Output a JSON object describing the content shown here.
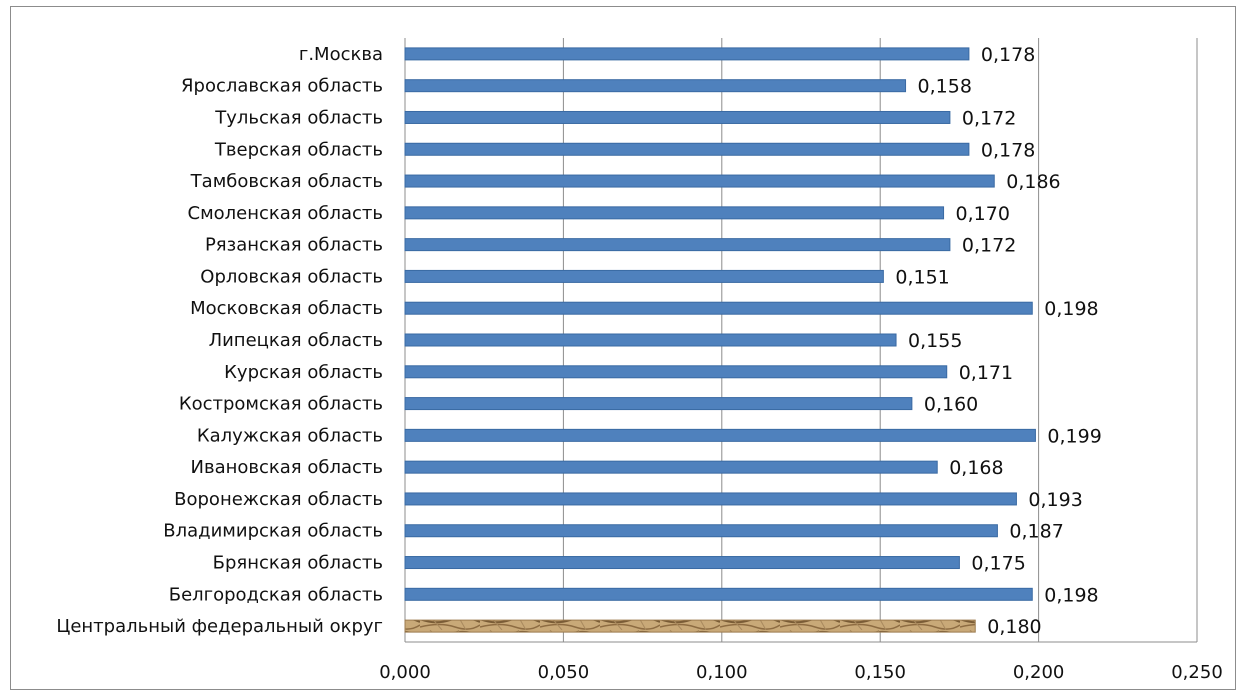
{
  "chart_data": {
    "type": "bar",
    "orientation": "horizontal",
    "categories": [
      "г.Москва",
      "Ярославская область",
      "Тульская область",
      "Тверская область",
      "Тамбовская область",
      "Смоленская область",
      "Рязанская область",
      "Орловская область",
      "Московская область",
      "Липецкая область",
      "Курская область",
      "Костромская область",
      "Калужская область",
      "Ивановская область",
      "Воронежская область",
      "Владимирская область",
      "Брянская область",
      "Белгородская область",
      "Центральный федеральный округ"
    ],
    "values": [
      0.178,
      0.158,
      0.172,
      0.178,
      0.186,
      0.17,
      0.172,
      0.151,
      0.198,
      0.155,
      0.171,
      0.16,
      0.199,
      0.168,
      0.193,
      0.187,
      0.175,
      0.198,
      0.18
    ],
    "value_labels": [
      "0,178",
      "0,158",
      "0,172",
      "0,178",
      "0,186",
      "0,170",
      "0,172",
      "0,151",
      "0,198",
      "0,155",
      "0,171",
      "0,160",
      "0,199",
      "0,168",
      "0,193",
      "0,187",
      "0,175",
      "0,198",
      "0,180"
    ],
    "xlim": [
      0,
      0.25
    ],
    "x_ticks": [
      0,
      0.05,
      0.1,
      0.15,
      0.2,
      0.25
    ],
    "x_tick_labels": [
      "0,000",
      "0,050",
      "0,100",
      "0,150",
      "0,200",
      "0,250"
    ],
    "grid": true,
    "colors": {
      "bar": "#4f81bd",
      "bar_edge": "#3a6aa3",
      "highlight_bar": "#c9a978",
      "highlight_pattern": "#7a5c36",
      "grid": "#8c8c8c"
    },
    "highlight_category": "Центральный федеральный округ"
  }
}
